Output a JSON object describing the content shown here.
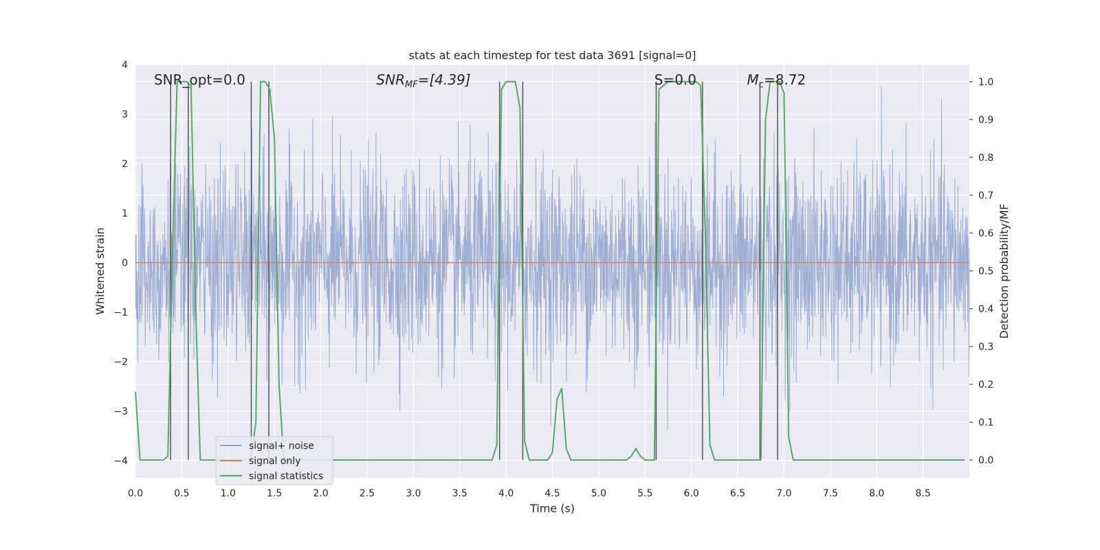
{
  "chart_data": {
    "type": "line",
    "title": "stats at each timestep for test data 3691 [signal=0]",
    "xlabel": "Time (s)",
    "ylabel": "Whitened strain",
    "y2label": "Detection probability/MF",
    "xlim": [
      0.0,
      9.0
    ],
    "ylim": [
      -4.35,
      4.0
    ],
    "y2lim": [
      -0.047,
      1.045
    ],
    "x_ticks": [
      0.0,
      0.5,
      1.0,
      1.5,
      2.0,
      2.5,
      3.0,
      3.5,
      4.0,
      4.5,
      5.0,
      5.5,
      6.0,
      6.5,
      7.0,
      7.5,
      8.0,
      8.5
    ],
    "x_tick_labels": [
      "0.0",
      "0.5",
      "1.0",
      "1.5",
      "2.0",
      "2.5",
      "3.0",
      "3.5",
      "4.0",
      "4.5",
      "5.0",
      "5.5",
      "6.0",
      "6.5",
      "7.0",
      "7.5",
      "8.0",
      "8.5"
    ],
    "y_ticks": [
      -4,
      -3,
      -2,
      -1,
      0,
      1,
      2,
      3,
      4
    ],
    "y_tick_labels": [
      "−4",
      "−3",
      "−2",
      "−1",
      "0",
      "1",
      "2",
      "3",
      "4"
    ],
    "y2_ticks": [
      0.0,
      0.1,
      0.2,
      0.3,
      0.4,
      0.5,
      0.6,
      0.7,
      0.8,
      0.9,
      1.0
    ],
    "y2_tick_labels": [
      "0.0",
      "0.1",
      "0.2",
      "0.3",
      "0.4",
      "0.5",
      "0.6",
      "0.7",
      "0.8",
      "0.9",
      "1.0"
    ],
    "grid": true,
    "legend_position": "lower-left",
    "annotations": {
      "snr_opt": "SNR_opt=0.0",
      "snr_mf_prefix": "SNR",
      "snr_mf_sub": "MF",
      "snr_mf_rest": "=[4.39]",
      "s_label": "S=0.0",
      "mc_prefix": "M",
      "mc_sub": "c",
      "mc_rest": "=8.72"
    },
    "series": [
      {
        "name": "signal+ noise",
        "axis": "left",
        "color": "#8fa3cc",
        "description": "whitened strain noise, values roughly within ±3.6",
        "y_range": [
          -3.6,
          3.6
        ]
      },
      {
        "name": "signal only",
        "axis": "left",
        "color": "#dd8452",
        "x": [
          0.0,
          9.0
        ],
        "y": [
          0.0,
          0.0
        ]
      },
      {
        "name": "signal statistics",
        "axis": "right",
        "color": "#55a868",
        "x": [
          0.0,
          0.05,
          0.1,
          0.15,
          0.2,
          0.25,
          0.3,
          0.35,
          0.4,
          0.45,
          0.5,
          0.55,
          0.6,
          0.65,
          0.7,
          0.75,
          0.8,
          0.85,
          0.9,
          1.0,
          1.1,
          1.2,
          1.25,
          1.3,
          1.35,
          1.4,
          1.45,
          1.5,
          1.55,
          1.6,
          1.7,
          2.0,
          2.5,
          3.0,
          3.5,
          3.85,
          3.9,
          3.95,
          4.0,
          4.05,
          4.1,
          4.15,
          4.2,
          4.25,
          4.3,
          4.35,
          4.4,
          4.45,
          4.5,
          4.55,
          4.6,
          4.65,
          4.7,
          4.75,
          4.8,
          5.0,
          5.3,
          5.35,
          5.4,
          5.45,
          5.5,
          5.55,
          5.6,
          5.65,
          5.7,
          5.75,
          5.8,
          5.9,
          6.0,
          6.05,
          6.1,
          6.15,
          6.2,
          6.25,
          6.3,
          6.5,
          6.7,
          6.75,
          6.8,
          6.85,
          6.9,
          6.95,
          7.0,
          7.05,
          7.1,
          7.5,
          8.0,
          8.5,
          8.95
        ],
        "y": [
          0.18,
          0.0,
          0.0,
          0.0,
          0.0,
          0.0,
          0.0,
          0.01,
          0.55,
          1.0,
          1.0,
          1.0,
          0.99,
          0.4,
          0.0,
          0.0,
          0.0,
          0.0,
          0.0,
          0.0,
          0.0,
          0.0,
          0.01,
          0.1,
          1.0,
          1.0,
          0.98,
          0.85,
          0.2,
          0.0,
          0.0,
          0.0,
          0.0,
          0.0,
          0.0,
          0.0,
          0.04,
          0.98,
          1.0,
          1.0,
          1.0,
          0.93,
          0.05,
          0.0,
          0.0,
          0.0,
          0.0,
          0.0,
          0.02,
          0.16,
          0.19,
          0.03,
          0.0,
          0.0,
          0.0,
          0.0,
          0.0,
          0.01,
          0.03,
          0.01,
          0.0,
          0.0,
          0.0,
          0.98,
          0.99,
          1.0,
          1.0,
          1.0,
          1.0,
          1.0,
          0.99,
          0.6,
          0.04,
          0.0,
          0.0,
          0.0,
          0.0,
          0.0,
          0.9,
          1.0,
          1.0,
          1.0,
          0.97,
          0.06,
          0.0,
          0.0,
          0.0,
          0.0,
          0.0
        ]
      }
    ],
    "vlines": [
      0.38,
      0.57,
      1.25,
      1.44,
      3.93,
      4.18,
      5.62,
      6.12,
      6.74,
      6.93
    ]
  }
}
